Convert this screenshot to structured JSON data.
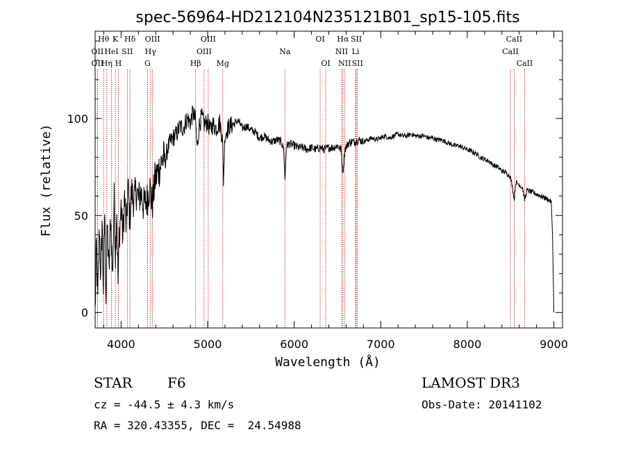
{
  "chart_data": {
    "type": "line",
    "title": "spec-56964-HD212104N235121B01_sp15-105.fits",
    "xlabel": "Wavelength (Å)",
    "ylabel": "Flux (relative)",
    "xlim": [
      3700,
      9100
    ],
    "ylim": [
      -8,
      145
    ],
    "x_ticks": [
      4000,
      5000,
      6000,
      7000,
      8000,
      9000
    ],
    "x_tick_labels": [
      "4000",
      "5000",
      "6000",
      "7000",
      "8000",
      "9000"
    ],
    "y_ticks": [
      0,
      50,
      100
    ],
    "y_tick_labels": [
      "0",
      "50",
      "100"
    ],
    "x_minor_step": 200,
    "y_minor_step": 10,
    "grid": false,
    "legend": "none",
    "series": [
      {
        "name": "flux",
        "anchors": [
          [
            3700,
            0
          ],
          [
            3715,
            35
          ],
          [
            3730,
            5
          ],
          [
            3750,
            45
          ],
          [
            3765,
            15
          ],
          [
            3780,
            48
          ],
          [
            3795,
            12
          ],
          [
            3810,
            52
          ],
          [
            3825,
            8
          ],
          [
            3840,
            45
          ],
          [
            3860,
            20
          ],
          [
            3880,
            50
          ],
          [
            3900,
            18
          ],
          [
            3920,
            58
          ],
          [
            3935,
            30
          ],
          [
            3950,
            55
          ],
          [
            3965,
            15
          ],
          [
            3980,
            40
          ],
          [
            4000,
            55
          ],
          [
            4020,
            38
          ],
          [
            4040,
            60
          ],
          [
            4060,
            42
          ],
          [
            4080,
            65
          ],
          [
            4100,
            48
          ],
          [
            4120,
            62
          ],
          [
            4150,
            58
          ],
          [
            4180,
            63
          ],
          [
            4200,
            58
          ],
          [
            4230,
            62
          ],
          [
            4260,
            55
          ],
          [
            4300,
            58
          ],
          [
            4330,
            65
          ],
          [
            4360,
            55
          ],
          [
            4390,
            68
          ],
          [
            4420,
            72
          ],
          [
            4450,
            75
          ],
          [
            4480,
            80
          ],
          [
            4510,
            78
          ],
          [
            4540,
            85
          ],
          [
            4570,
            88
          ],
          [
            4600,
            90
          ],
          [
            4640,
            92
          ],
          [
            4680,
            96
          ],
          [
            4720,
            95
          ],
          [
            4760,
            100
          ],
          [
            4800,
            98
          ],
          [
            4830,
            103
          ],
          [
            4860,
            99
          ],
          [
            4880,
            84
          ],
          [
            4900,
            96
          ],
          [
            4930,
            101
          ],
          [
            4960,
            97
          ],
          [
            5000,
            98
          ],
          [
            5030,
            94
          ],
          [
            5060,
            97
          ],
          [
            5100,
            95
          ],
          [
            5140,
            98
          ],
          [
            5170,
            90
          ],
          [
            5183,
            68
          ],
          [
            5200,
            92
          ],
          [
            5250,
            96
          ],
          [
            5300,
            97
          ],
          [
            5350,
            99
          ],
          [
            5400,
            95
          ],
          [
            5450,
            96
          ],
          [
            5500,
            94
          ],
          [
            5550,
            93
          ],
          [
            5600,
            90
          ],
          [
            5650,
            91
          ],
          [
            5700,
            89
          ],
          [
            5750,
            88
          ],
          [
            5800,
            89
          ],
          [
            5850,
            88
          ],
          [
            5880,
            84
          ],
          [
            5893,
            68
          ],
          [
            5910,
            86
          ],
          [
            5950,
            87
          ],
          [
            6000,
            86
          ],
          [
            6050,
            85
          ],
          [
            6100,
            85
          ],
          [
            6150,
            84
          ],
          [
            6200,
            85
          ],
          [
            6250,
            84
          ],
          [
            6300,
            85
          ],
          [
            6350,
            84
          ],
          [
            6400,
            85
          ],
          [
            6450,
            85
          ],
          [
            6500,
            86
          ],
          [
            6540,
            84
          ],
          [
            6563,
            72
          ],
          [
            6585,
            84
          ],
          [
            6620,
            87
          ],
          [
            6660,
            88
          ],
          [
            6700,
            88
          ],
          [
            6750,
            89
          ],
          [
            6800,
            88
          ],
          [
            6850,
            89
          ],
          [
            6900,
            90
          ],
          [
            6950,
            89
          ],
          [
            7000,
            90
          ],
          [
            7050,
            91
          ],
          [
            7100,
            90
          ],
          [
            7150,
            91
          ],
          [
            7200,
            92
          ],
          [
            7250,
            91
          ],
          [
            7300,
            91
          ],
          [
            7350,
            92
          ],
          [
            7400,
            91
          ],
          [
            7450,
            91
          ],
          [
            7500,
            91
          ],
          [
            7550,
            90
          ],
          [
            7600,
            90
          ],
          [
            7650,
            89
          ],
          [
            7700,
            89
          ],
          [
            7750,
            88
          ],
          [
            7800,
            87
          ],
          [
            7850,
            86
          ],
          [
            7900,
            86
          ],
          [
            7950,
            85
          ],
          [
            8000,
            84
          ],
          [
            8050,
            83
          ],
          [
            8100,
            82
          ],
          [
            8150,
            80
          ],
          [
            8200,
            79
          ],
          [
            8250,
            78
          ],
          [
            8300,
            76
          ],
          [
            8350,
            75
          ],
          [
            8400,
            73
          ],
          [
            8450,
            72
          ],
          [
            8498,
            70
          ],
          [
            8520,
            65
          ],
          [
            8542,
            58
          ],
          [
            8560,
            67
          ],
          [
            8600,
            66
          ],
          [
            8640,
            64
          ],
          [
            8662,
            58
          ],
          [
            8690,
            63
          ],
          [
            8750,
            62
          ],
          [
            8800,
            61
          ],
          [
            8850,
            60
          ],
          [
            8900,
            59
          ],
          [
            8940,
            58
          ],
          [
            8970,
            57
          ],
          [
            8985,
            40
          ],
          [
            9000,
            0
          ]
        ]
      }
    ],
    "lines": [
      {
        "name": "OII",
        "wavelength": 3727,
        "label": "OII",
        "row": 1
      },
      {
        "name": "OII-low",
        "wavelength": 3727,
        "label": "OII",
        "row": 2
      },
      {
        "name": "H-theta",
        "wavelength": 3798,
        "label": "Hθ",
        "row": 0
      },
      {
        "name": "H-eta",
        "wavelength": 3835,
        "label": "Hη",
        "row": 2
      },
      {
        "name": "HeI",
        "wavelength": 3889,
        "label": "HeI",
        "row": 1
      },
      {
        "name": "K",
        "wavelength": 3934,
        "label": "K",
        "row": 0
      },
      {
        "name": "H",
        "wavelength": 3968,
        "label": "H",
        "row": 2
      },
      {
        "name": "SII-a",
        "wavelength": 4072,
        "label": "SII",
        "row": 1
      },
      {
        "name": "H-delta",
        "wavelength": 4102,
        "label": "Hδ",
        "row": 0
      },
      {
        "name": "G",
        "wavelength": 4305,
        "label": "G",
        "row": 2
      },
      {
        "name": "H-gamma",
        "wavelength": 4340,
        "label": "Hγ",
        "row": 1
      },
      {
        "name": "OIII-a",
        "wavelength": 4363,
        "label": "OIII",
        "row": 0
      },
      {
        "name": "H-beta",
        "wavelength": 4861,
        "label": "Hβ",
        "row": 2
      },
      {
        "name": "OIII-b",
        "wavelength": 4959,
        "label": "OIII",
        "row": 1
      },
      {
        "name": "OIII-c",
        "wavelength": 5007,
        "label": "OIII",
        "row": 0
      },
      {
        "name": "Mg",
        "wavelength": 5175,
        "label": "Mg",
        "row": 2
      },
      {
        "name": "Na",
        "wavelength": 5893,
        "label": "Na",
        "row": 1
      },
      {
        "name": "OI-a",
        "wavelength": 6300,
        "label": "OI",
        "row": 0
      },
      {
        "name": "OI-b",
        "wavelength": 6364,
        "label": "OI",
        "row": 2
      },
      {
        "name": "NII-a",
        "wavelength": 6548,
        "label": "NII",
        "row": 1
      },
      {
        "name": "H-alpha",
        "wavelength": 6563,
        "label": "Hα",
        "row": 0
      },
      {
        "name": "NII-b",
        "wavelength": 6583,
        "label": "NII",
        "row": 2
      },
      {
        "name": "Li",
        "wavelength": 6708,
        "label": "Li",
        "row": 1
      },
      {
        "name": "SII-b",
        "wavelength": 6717,
        "label": "SII",
        "row": 0
      },
      {
        "name": "SII-c",
        "wavelength": 6731,
        "label": "SII",
        "row": 2
      },
      {
        "name": "CaII-a",
        "wavelength": 8498,
        "label": "CaII",
        "row": 1
      },
      {
        "name": "CaII-b",
        "wavelength": 8542,
        "label": "CaII",
        "row": 0
      },
      {
        "name": "CaII-c",
        "wavelength": 8662,
        "label": "CaII",
        "row": 2
      }
    ]
  },
  "info": {
    "class": "STAR",
    "subclass": "F6",
    "survey": "LAMOST DR3",
    "cz": "cz = -44.5 ± 4.3 km/s",
    "obs_date": "Obs-Date: 20141102",
    "coords": "RA = 320.43355, DEC =  24.54988"
  },
  "colors": {
    "axis": "#000000",
    "spectrum": "#000000",
    "line_marker": "#c00000",
    "background": "#ffffff"
  }
}
